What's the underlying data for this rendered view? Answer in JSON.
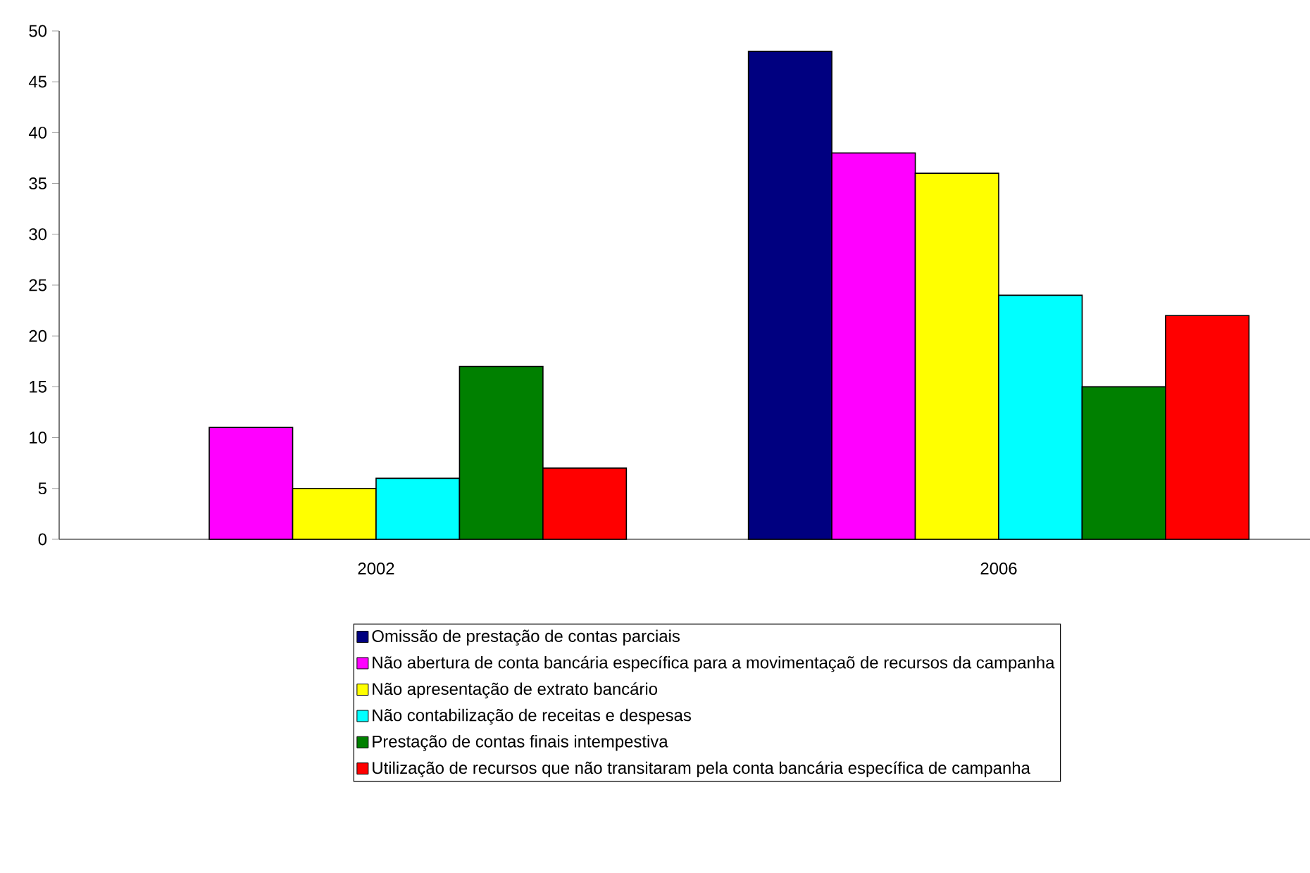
{
  "chart_data": {
    "type": "bar",
    "categories": [
      "2002",
      "2006"
    ],
    "series": [
      {
        "name": "Omissão de prestação de contas parciais",
        "color": "#000080",
        "values": [
          null,
          48
        ]
      },
      {
        "name": "Não abertura de conta bancária específica para a movimentaçaõ de recursos da campanha",
        "color": "#ff00ff",
        "values": [
          11,
          38
        ]
      },
      {
        "name": "Não apresentação de extrato bancário",
        "color": "#ffff00",
        "values": [
          5,
          36
        ]
      },
      {
        "name": "Não contabilização de receitas e despesas",
        "color": "#00ffff",
        "values": [
          6,
          24
        ]
      },
      {
        "name": "Prestação de contas finais intempestiva",
        "color": "#008000",
        "values": [
          17,
          15
        ]
      },
      {
        "name": "Utilização de recursos que não transitaram pela conta bancária específica de campanha",
        "color": "#ff0000",
        "values": [
          7,
          22
        ]
      }
    ],
    "ylim": [
      0,
      50
    ],
    "yticks": [
      0,
      5,
      10,
      15,
      20,
      25,
      30,
      35,
      40,
      45,
      50
    ],
    "legend": "bottom"
  }
}
